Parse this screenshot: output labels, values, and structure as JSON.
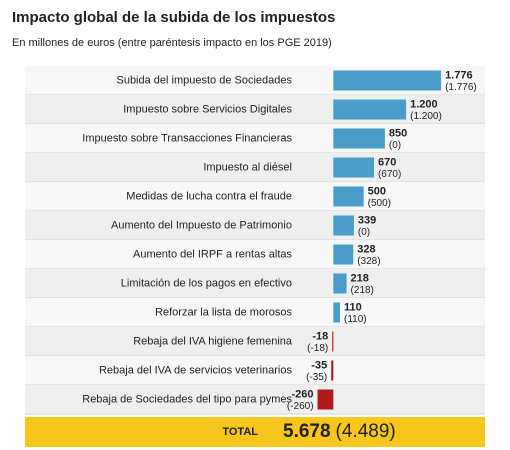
{
  "chart_data": {
    "type": "bar",
    "orientation": "horizontal",
    "title": "Impacto global de la subida de los impuestos",
    "subtitle": "En millones de euros (entre paréntesis impacto en los PGE 2019)",
    "categories": [
      "Subida del impuesto de Sociedades",
      "Impuesto sobre Servicios Digitales",
      "Impuesto sobre Transacciones Financieras",
      "Impuesto al diésel",
      "Medidas de lucha contra el fraude",
      "Aumento del Impuesto de Patrimonio",
      "Aumento del IRPF a rentas altas",
      "Limitación de los pagos en efectivo",
      "Reforzar la lista de morosos",
      "Rebaja del IVA higiene femenina",
      "Rebaja del IVA de servicios veterinarios",
      "Rebaja de Sociedades del tipo para pymes"
    ],
    "values": [
      1776,
      1200,
      850,
      670,
      500,
      339,
      328,
      218,
      110,
      -18,
      -35,
      -260
    ],
    "value_labels": [
      "1.776",
      "1.200",
      "850",
      "670",
      "500",
      "339",
      "328",
      "218",
      "110",
      "-18",
      "-35",
      "-260"
    ],
    "pge_values": [
      1776,
      1200,
      0,
      670,
      500,
      0,
      328,
      218,
      110,
      -18,
      -35,
      -260
    ],
    "pge_value_labels": [
      "(1.776)",
      "(1.200)",
      "(0)",
      "(670)",
      "(500)",
      "(0)",
      "(328)",
      "(218)",
      "(110)",
      "(-18)",
      "(-35)",
      "(-260)"
    ],
    "color": "#4a9dc8",
    "negative_color": "#b3161b",
    "xlim": [
      -500,
      2500
    ],
    "total": {
      "label": "TOTAL",
      "value": 5678,
      "value_label": "5.678",
      "pge_value": 4489,
      "pge_value_label": "(4.489)",
      "color": "#f7c51b"
    }
  }
}
